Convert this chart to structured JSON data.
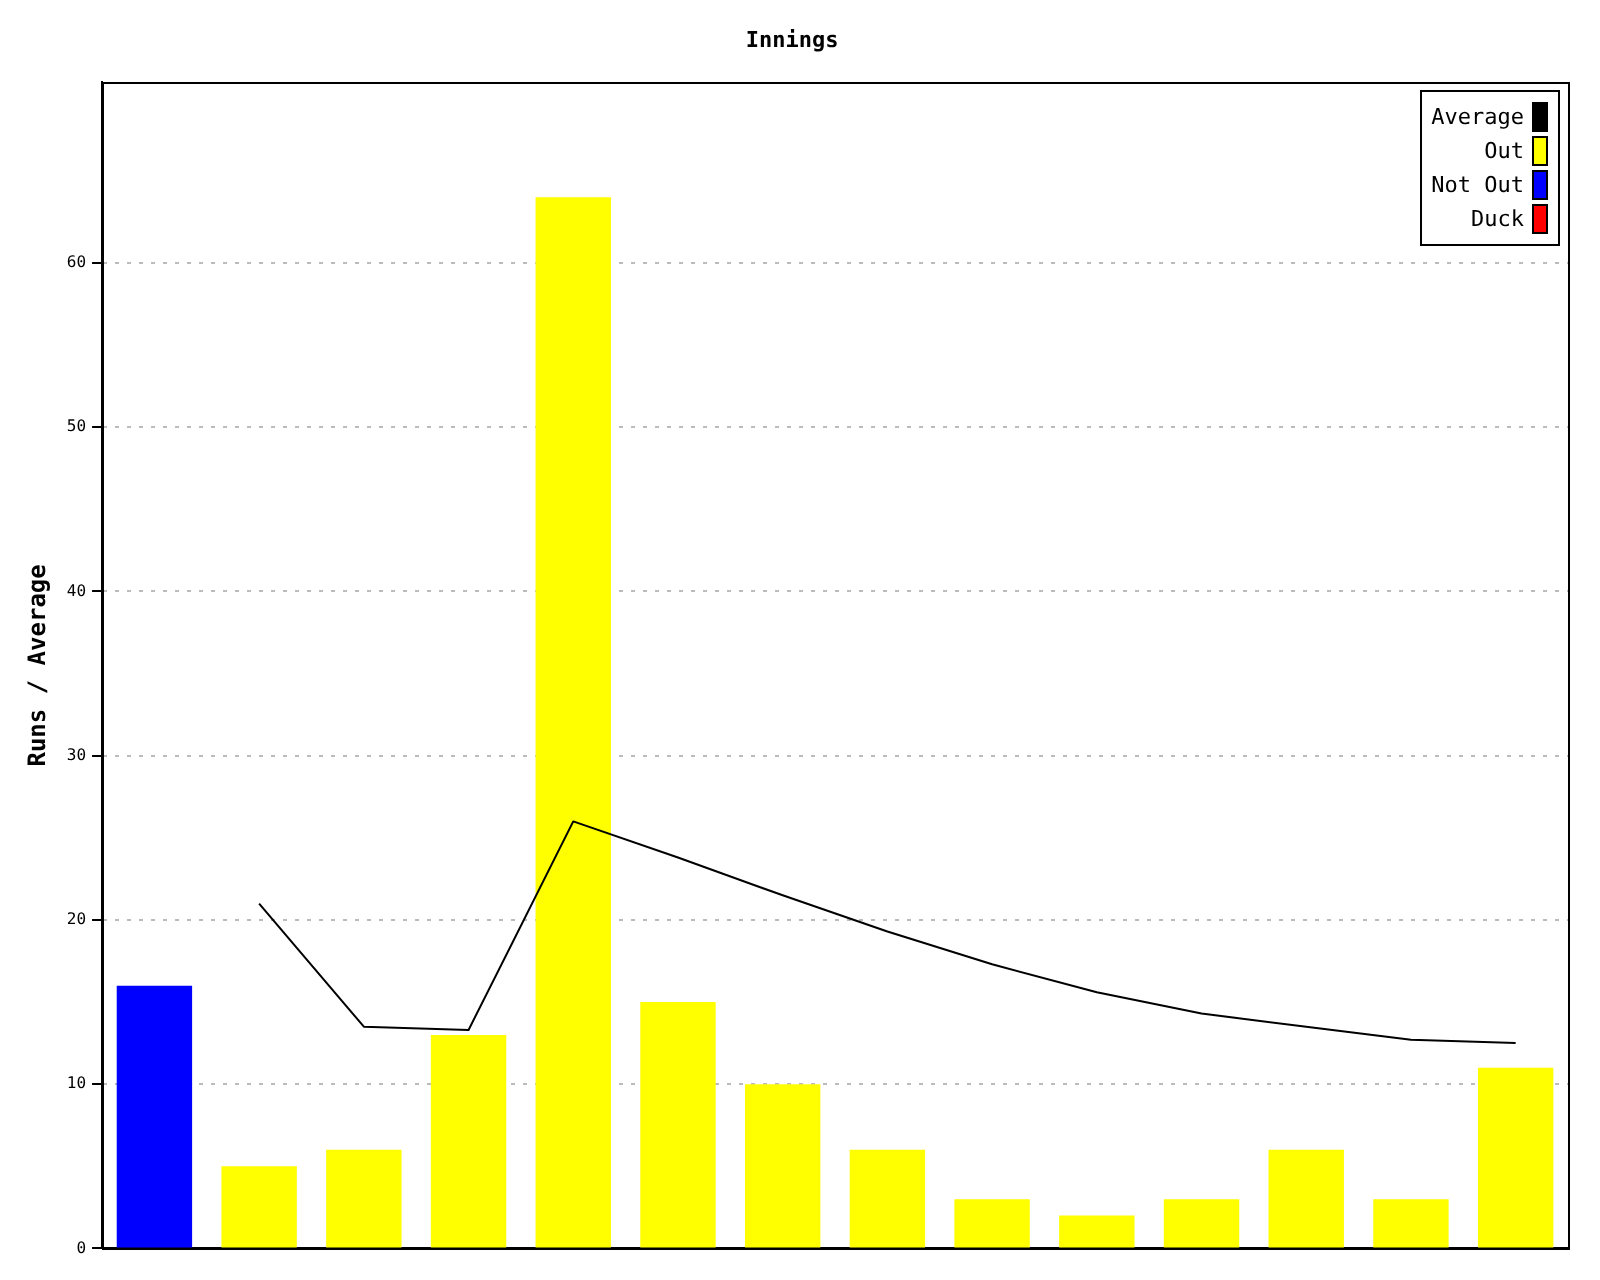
{
  "chart_data": {
    "type": "bar",
    "title": "Innings",
    "ylabel": "Runs / Average",
    "categories": [
      null,
      null,
      null,
      null,
      null,
      null,
      null,
      null,
      null,
      null,
      null,
      null,
      null,
      null
    ],
    "series": [
      {
        "name": "Average",
        "type": "line",
        "color": "#000000",
        "values": [
          null,
          21,
          13.5,
          13.3,
          26,
          23.8,
          21.5,
          19.3,
          17.3,
          15.6,
          14.3,
          13.5,
          12.7,
          12.5
        ]
      },
      {
        "name": "Out",
        "color": "#ffff00",
        "values": [
          null,
          5,
          6,
          13,
          64,
          15,
          10,
          6,
          3,
          2,
          3,
          6,
          3,
          11
        ]
      },
      {
        "name": "Not Out",
        "color": "#0000ff",
        "values": [
          16,
          null,
          null,
          null,
          null,
          null,
          null,
          null,
          null,
          null,
          null,
          null,
          null,
          null
        ]
      },
      {
        "name": "Duck",
        "color": "#ff0000",
        "values": [
          null,
          null,
          null,
          null,
          null,
          null,
          null,
          null,
          null,
          null,
          null,
          null,
          null,
          null
        ]
      }
    ],
    "stacked": true,
    "ylim": [
      0,
      71
    ],
    "yticks": [
      0,
      10,
      20,
      30,
      40,
      50,
      60
    ],
    "grid": "y",
    "legend": "top right",
    "tick_labels": "y",
    "marker": "none"
  }
}
